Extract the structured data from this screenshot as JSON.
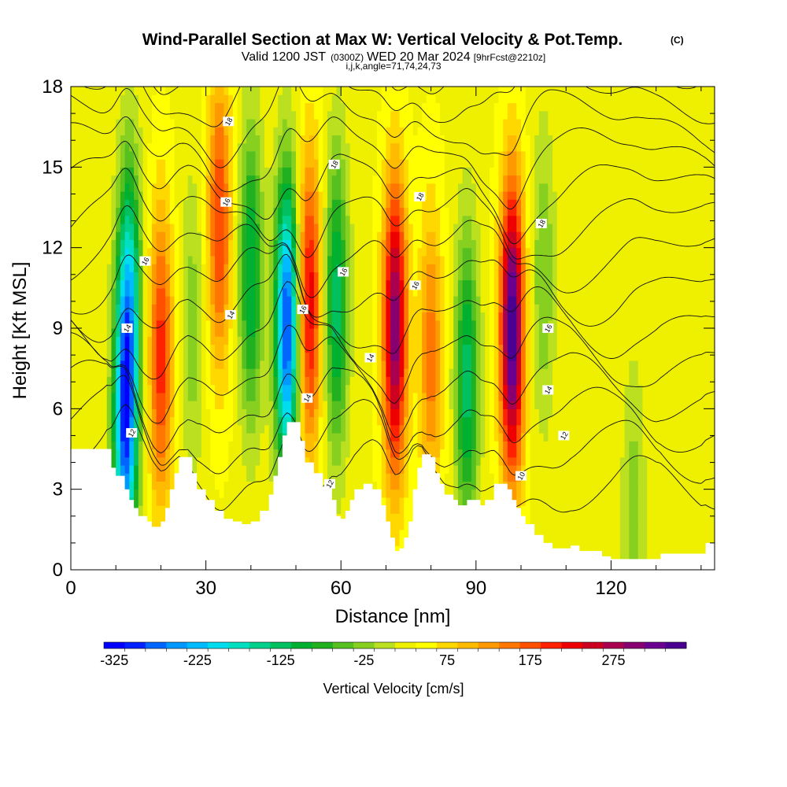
{
  "chart_data": {
    "type": "heatmap",
    "title": "Wind-Parallel Section at Max W: Vertical Velocity & Pot.Temp.",
    "title_mark": "(C)",
    "subtitle_parts": {
      "valid": "Valid 1200 JST",
      "zulu": "(0300Z)",
      "date": "WED 20 Mar 2024",
      "fcst": "[9hrFcst@2210z]"
    },
    "subtitle2": "i,j,k,angle=71,74,24,73",
    "xlabel": "Distance [nm]",
    "ylabel": "Height [Kft MSL]",
    "xlim": [
      0,
      143
    ],
    "ylim": [
      0,
      18
    ],
    "x_ticks": [
      0,
      30,
      60,
      90,
      120
    ],
    "y_ticks": [
      0,
      3,
      6,
      9,
      12,
      15,
      18
    ],
    "colorbar": {
      "label": "Vertical Velocity [cm/s]",
      "tick_labels": [
        -325,
        -225,
        -125,
        -25,
        75,
        175,
        275
      ],
      "min": -350,
      "max": 350,
      "step": 25,
      "colors": [
        "#0000ff",
        "#0022ff",
        "#0066ff",
        "#0099ff",
        "#00bbff",
        "#00ddee",
        "#00e0c0",
        "#00d08a",
        "#00c060",
        "#00b030",
        "#20b020",
        "#55c020",
        "#88d020",
        "#bbe020",
        "#eef000",
        "#ffff00",
        "#ffd800",
        "#ffbb00",
        "#ff9900",
        "#ff7700",
        "#ff5000",
        "#ff2200",
        "#ee0000",
        "#cc0020",
        "#aa0050",
        "#880070",
        "#6a0090",
        "#4a0090"
      ]
    },
    "w_features": [
      {
        "x": 12,
        "z": 5,
        "w": -270
      },
      {
        "x": 13,
        "z": 10,
        "w": -200
      },
      {
        "x": 20,
        "z": 8,
        "w": 170
      },
      {
        "x": 27,
        "z": 9,
        "w": -60
      },
      {
        "x": 33,
        "z": 13,
        "w": 160
      },
      {
        "x": 40,
        "z": 11,
        "w": -150
      },
      {
        "x": 48,
        "z": 9,
        "w": -330
      },
      {
        "x": 53,
        "z": 10,
        "w": 200
      },
      {
        "x": 59,
        "z": 10,
        "w": -160
      },
      {
        "x": 72,
        "z": 9,
        "w": 280
      },
      {
        "x": 80,
        "z": 8,
        "w": 120
      },
      {
        "x": 88,
        "z": 7,
        "w": -160
      },
      {
        "x": 98,
        "z": 9,
        "w": 330
      },
      {
        "x": 105,
        "z": 11,
        "w": -70
      },
      {
        "x": 125,
        "z": 2,
        "w": -60
      }
    ],
    "contour_labels": [
      {
        "text": "12",
        "x": 13.5,
        "z": 5.1
      },
      {
        "text": "14",
        "x": 12.5,
        "z": 9.0
      },
      {
        "text": "16",
        "x": 16.5,
        "z": 11.5
      },
      {
        "text": "14",
        "x": 35.5,
        "z": 9.5
      },
      {
        "text": "16",
        "x": 34.5,
        "z": 13.7
      },
      {
        "text": "18",
        "x": 35,
        "z": 16.7
      },
      {
        "text": "16",
        "x": 51.5,
        "z": 9.7
      },
      {
        "text": "14",
        "x": 52.5,
        "z": 6.4
      },
      {
        "text": "12",
        "x": 57.5,
        "z": 3.2
      },
      {
        "text": "18",
        "x": 58.5,
        "z": 15.1
      },
      {
        "text": "16",
        "x": 60.5,
        "z": 11.1
      },
      {
        "text": "14",
        "x": 66.5,
        "z": 7.9
      },
      {
        "text": "18",
        "x": 77.5,
        "z": 13.9
      },
      {
        "text": "16",
        "x": 76.5,
        "z": 10.6
      },
      {
        "text": "18",
        "x": 104.5,
        "z": 12.9
      },
      {
        "text": "16",
        "x": 106,
        "z": 9.0
      },
      {
        "text": "14",
        "x": 106,
        "z": 6.7
      },
      {
        "text": "12",
        "x": 109.5,
        "z": 5.0
      },
      {
        "text": "10",
        "x": 100,
        "z": 3.5
      }
    ]
  }
}
